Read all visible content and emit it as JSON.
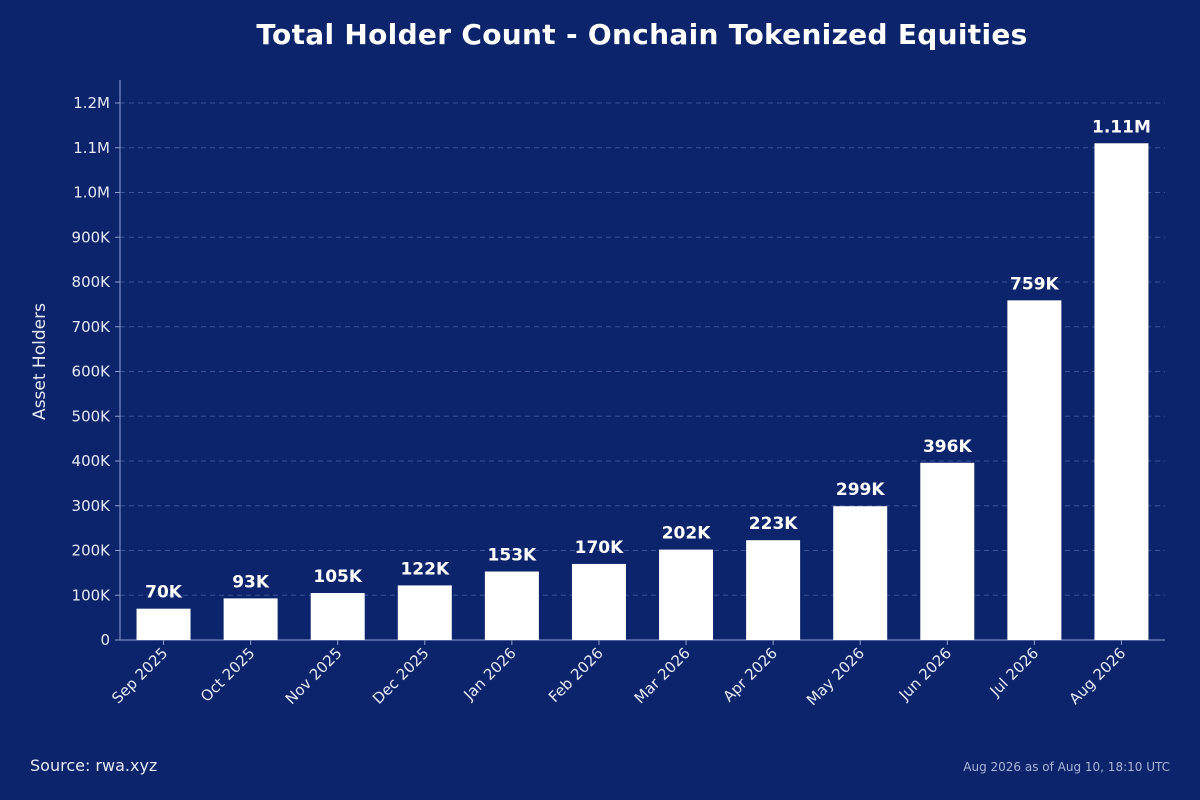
{
  "chart_data": {
    "type": "bar",
    "title": "Total Holder Count - Onchain Tokenized Equities",
    "xlabel": "",
    "ylabel": "Asset Holders",
    "categories": [
      "Sep 2025",
      "Oct 2025",
      "Nov 2025",
      "Dec 2025",
      "Jan 2026",
      "Feb 2026",
      "Mar 2026",
      "Apr 2026",
      "May 2026",
      "Jun 2026",
      "Jul 2026",
      "Aug 2026"
    ],
    "values": [
      70000,
      93000,
      105000,
      122000,
      153000,
      170000,
      202000,
      223000,
      299000,
      396000,
      759000,
      1110000
    ],
    "data_labels": [
      "70K",
      "93K",
      "105K",
      "122K",
      "153K",
      "170K",
      "202K",
      "223K",
      "299K",
      "396K",
      "759K",
      "1.11M"
    ],
    "ylim": [
      0,
      1200000
    ],
    "yticks": [
      0,
      100000,
      200000,
      300000,
      400000,
      500000,
      600000,
      700000,
      800000,
      900000,
      1000000,
      1100000,
      1200000
    ],
    "ytick_labels": [
      "0",
      "100K",
      "200K",
      "300K",
      "400K",
      "500K",
      "600K",
      "700K",
      "800K",
      "900K",
      "1.0M",
      "1.1M",
      "1.2M"
    ],
    "grid": true,
    "bar_color": "#ffffff"
  },
  "footer": {
    "source": "Source: rwa.xyz",
    "timestamp": "Aug 2026 as of Aug 10, 18:10 UTC"
  },
  "colors": {
    "background": "#0c246b",
    "grid": "#3a5296",
    "axis": "#8ea0d0"
  }
}
